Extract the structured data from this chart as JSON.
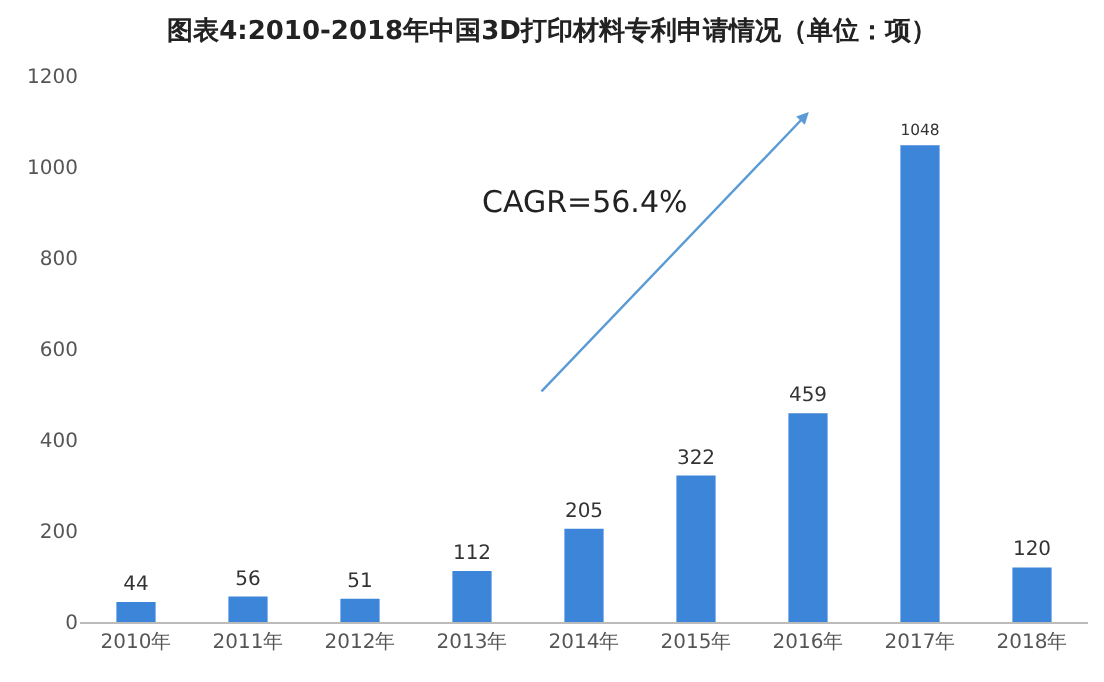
{
  "chart_data": {
    "type": "bar",
    "title": "图表4:2010-2018年中国3D打印材料专利申请情况（单位：项）",
    "categories": [
      "2010年",
      "2011年",
      "2012年",
      "2013年",
      "2014年",
      "2015年",
      "2016年",
      "2017年",
      "2018年"
    ],
    "values": [
      44,
      56,
      51,
      112,
      205,
      322,
      459,
      1048,
      120
    ],
    "color": "#3d85d8",
    "ylim": [
      0,
      1200
    ],
    "yticks": [
      0,
      200,
      400,
      600,
      800,
      1000,
      1200
    ],
    "grid": false,
    "data_labels": true,
    "annotations": [
      "CAGR=56.4%"
    ]
  }
}
